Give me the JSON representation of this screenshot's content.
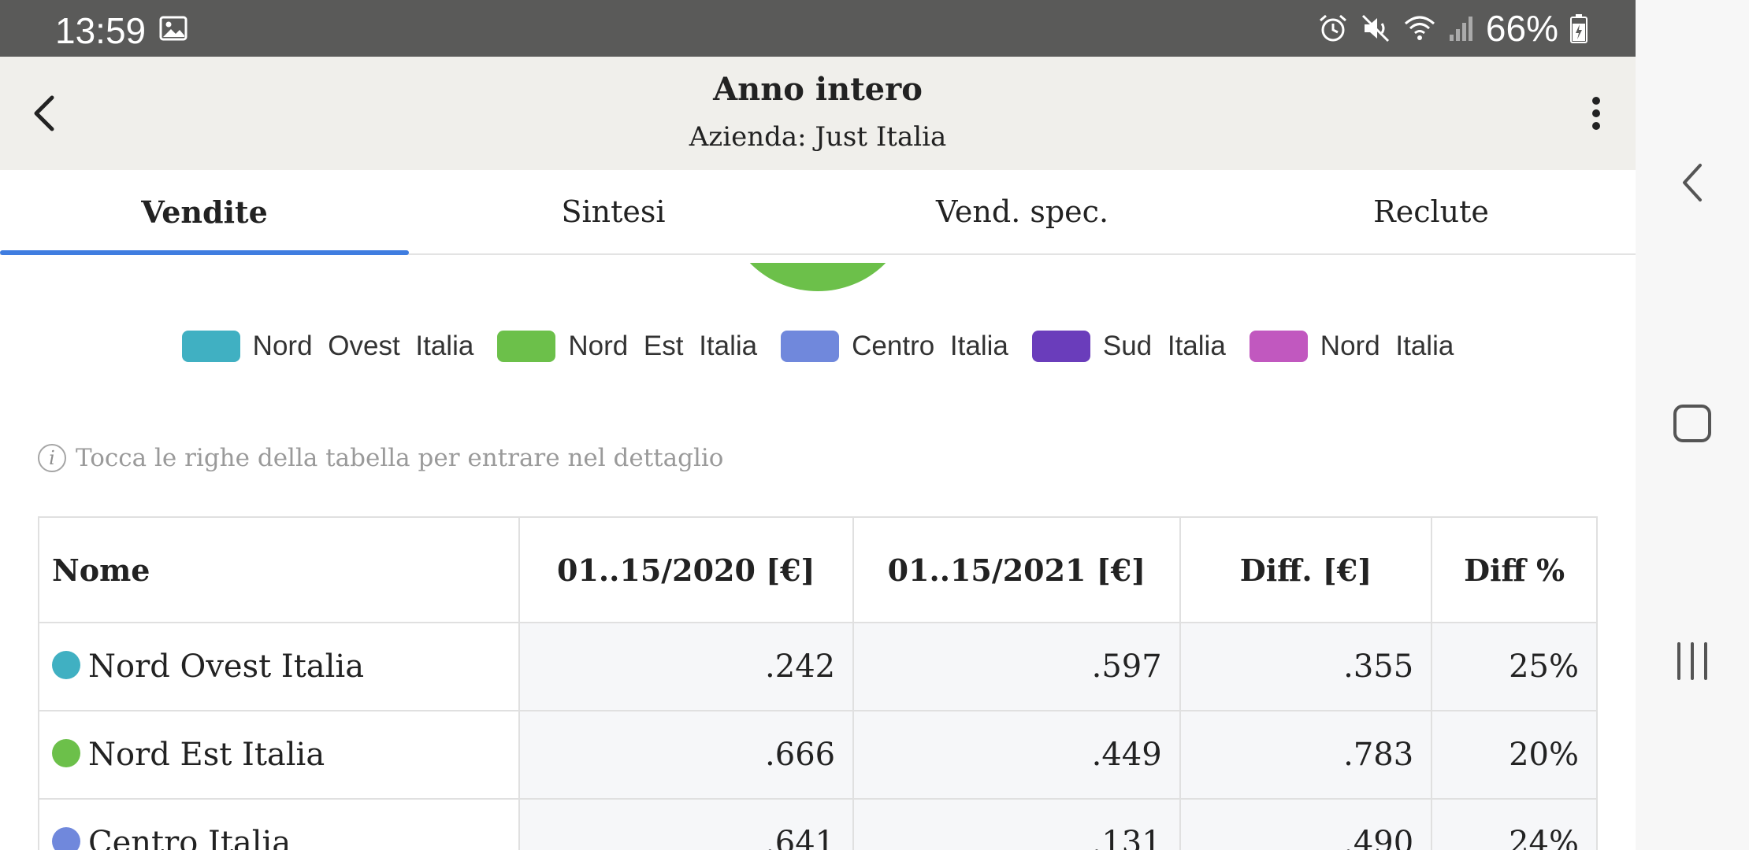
{
  "status_bar": {
    "time": "13:59",
    "battery": "66%",
    "icons": [
      "image-icon",
      "alarm-icon",
      "mute-icon",
      "wifi-icon",
      "signal-icon",
      "battery-icon"
    ]
  },
  "app_bar": {
    "title": "Anno intero",
    "subtitle": "Azienda: Just Italia"
  },
  "tabs": [
    {
      "label": "Vendite",
      "active": true
    },
    {
      "label": "Sintesi",
      "active": false
    },
    {
      "label": "Vend. spec.",
      "active": false
    },
    {
      "label": "Reclute",
      "active": false
    }
  ],
  "legend": [
    {
      "label": "Nord Ovest  Italia",
      "color": "#40b0c2"
    },
    {
      "label": "Nord Est  Italia",
      "color": "#6cc04a"
    },
    {
      "label": "Centro  Italia",
      "color": "#7088dc"
    },
    {
      "label": "Sud  Italia",
      "color": "#6a3dbb"
    },
    {
      "label": "Nord  Italia",
      "color": "#c158bf"
    }
  ],
  "info_text": "Tocca le righe della tabella per entrare nel dettaglio",
  "table": {
    "headers": [
      "Nome",
      "01..15/2020 [€]",
      "01..15/2021 [€]",
      "Diff. [€]",
      "Diff %"
    ],
    "rows": [
      {
        "name": "Nord Ovest Italia",
        "color": "#40b0c2",
        "v2020": ".242",
        "v2021": ".597",
        "diff": ".355",
        "diff_pct": "25%"
      },
      {
        "name": "Nord Est Italia",
        "color": "#6cc04a",
        "v2020": ".666",
        "v2021": ".449",
        "diff": ".783",
        "diff_pct": "20%"
      },
      {
        "name": "Centro Italia",
        "color": "#7088dc",
        "v2020": ".641",
        "v2021": ".131",
        "diff": ".490",
        "diff_pct": "24%"
      }
    ]
  },
  "colors": {
    "status_bar_bg": "#5a5a59",
    "app_bar_bg": "#f0efeb",
    "tab_accent": "#3f7de0"
  }
}
